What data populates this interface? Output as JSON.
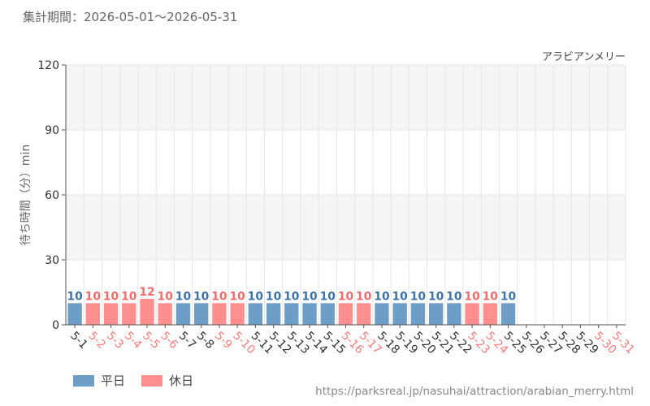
{
  "period_label": "集計期間：2026-05-01～2026-05-31",
  "source_url": "https://parksreal.jp/nasuhai/attraction/arabian_merry.html",
  "colors": {
    "weekday": "#6d9ec7",
    "holiday": "#ff8f8f",
    "weekday_label": "#3a74ab",
    "holiday_label": "#f26b6b",
    "xtick_weekday": "#333333",
    "xtick_holiday": "#ff7a7a",
    "band": "#f5f5f5",
    "grid": "#e6e6e6"
  },
  "chart_data": {
    "type": "bar",
    "title": "アラビアンメリー",
    "ylabel": "待ち時間（分）min",
    "ylim": [
      0,
      120
    ],
    "yticks": [
      0,
      30,
      60,
      90,
      120
    ],
    "grid": true,
    "legend_position": "bottom-left",
    "legend": [
      {
        "key": "weekday",
        "label": "平日"
      },
      {
        "key": "holiday",
        "label": "休日"
      }
    ],
    "categories": [
      "5-1",
      "5-2",
      "5-3",
      "5-4",
      "5-5",
      "5-6",
      "5-7",
      "5-8",
      "5-9",
      "5-10",
      "5-11",
      "5-12",
      "5-13",
      "5-14",
      "5-15",
      "5-16",
      "5-17",
      "5-18",
      "5-19",
      "5-20",
      "5-21",
      "5-22",
      "5-23",
      "5-24",
      "5-25",
      "5-26",
      "5-27",
      "5-28",
      "5-29",
      "5-30",
      "5-31"
    ],
    "values": [
      10,
      10,
      10,
      10,
      12,
      10,
      10,
      10,
      10,
      10,
      10,
      10,
      10,
      10,
      10,
      10,
      10,
      10,
      10,
      10,
      10,
      10,
      10,
      10,
      10,
      null,
      null,
      null,
      null,
      null,
      null
    ],
    "day_type": [
      "weekday",
      "holiday",
      "holiday",
      "holiday",
      "holiday",
      "holiday",
      "weekday",
      "weekday",
      "holiday",
      "holiday",
      "weekday",
      "weekday",
      "weekday",
      "weekday",
      "weekday",
      "holiday",
      "holiday",
      "weekday",
      "weekday",
      "weekday",
      "weekday",
      "weekday",
      "holiday",
      "holiday",
      "weekday",
      "weekday",
      "weekday",
      "weekday",
      "weekday",
      "holiday",
      "holiday"
    ]
  }
}
